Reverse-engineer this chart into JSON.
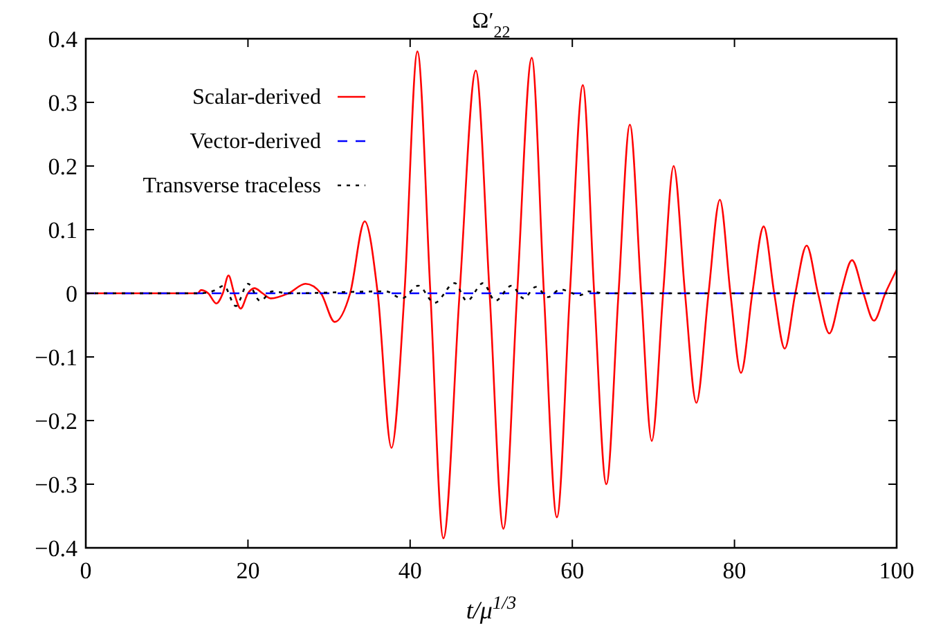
{
  "chart_data": {
    "type": "line",
    "title": "Ω′$_{22}$",
    "xlabel": "t/μ$^{1/3}$",
    "xlim": [
      0,
      100
    ],
    "xticks": [
      0,
      20,
      40,
      60,
      80,
      100
    ],
    "ylim": [
      -0.4,
      0.4
    ],
    "yticks": [
      {
        "value": -0.4,
        "label": "−0.4"
      },
      {
        "value": -0.3,
        "label": "−0.3"
      },
      {
        "value": -0.2,
        "label": "−0.2"
      },
      {
        "value": -0.1,
        "label": "−0.1"
      },
      0,
      0.1,
      0.2,
      0.3,
      0.4
    ],
    "grid": false,
    "legend": "top left",
    "series": [
      {
        "name": "Scalar-derived",
        "color": "#ff0000",
        "line_style": "solid",
        "x": [
          0,
          13.8,
          14.2,
          15.1,
          16.1,
          16.9,
          17.6,
          18.3,
          19.1,
          20.0,
          20.8,
          21.8,
          22.8,
          25.0,
          27.1,
          29.0,
          30.7,
          32.6,
          34.4,
          36.0,
          37.7,
          39.3,
          40.9,
          42.5,
          44.1,
          46.1,
          48.1,
          49.8,
          51.5,
          53.2,
          55.0,
          56.5,
          58.1,
          59.7,
          61.3,
          62.7,
          64.2,
          65.7,
          67.1,
          68.5,
          69.8,
          71.2,
          72.5,
          73.9,
          75.3,
          76.8,
          78.2,
          79.5,
          80.8,
          82.2,
          83.6,
          84.9,
          86.2,
          87.5,
          88.9,
          90.3,
          91.7,
          93.1,
          94.5,
          95.9,
          97.2,
          98.6,
          100
        ],
        "values": [
          0,
          0,
          0.005,
          0,
          -0.016,
          0,
          0.028,
          0,
          -0.024,
          0,
          0.008,
          0,
          -0.008,
          0,
          0.015,
          0,
          -0.045,
          0,
          0.113,
          0,
          -0.243,
          0,
          0.38,
          0,
          -0.385,
          0,
          0.35,
          0,
          -0.37,
          0,
          0.37,
          0,
          -0.352,
          0,
          0.327,
          0,
          -0.3,
          0,
          0.265,
          0,
          -0.232,
          0,
          0.2,
          0,
          -0.172,
          0,
          0.147,
          0,
          -0.125,
          0,
          0.105,
          0,
          -0.087,
          0,
          0.075,
          0,
          -0.063,
          0,
          0.052,
          0,
          -0.043,
          0,
          0.037
        ]
      },
      {
        "name": "Vector-derived",
        "color": "#0000ff",
        "line_style": "dashed",
        "x": [
          0,
          20,
          40,
          60,
          80,
          100
        ],
        "values": [
          0,
          0,
          0,
          0,
          0,
          0
        ]
      },
      {
        "name": "Transverse traceless",
        "color": "#000000",
        "line_style": "dotted",
        "x": [
          0,
          14,
          16,
          17,
          18.5,
          20,
          21.5,
          23,
          25,
          37,
          39,
          41,
          43,
          45.5,
          47,
          49,
          50.5,
          52.5,
          54,
          55.5,
          57,
          58.5,
          61,
          62,
          64,
          100
        ],
        "values": [
          0,
          0,
          0.005,
          0.012,
          -0.02,
          0.015,
          -0.012,
          0.003,
          0,
          0.003,
          -0.008,
          0.012,
          -0.015,
          0.016,
          -0.012,
          0.016,
          -0.012,
          0.012,
          -0.008,
          0.01,
          -0.006,
          0.006,
          -0.003,
          0.003,
          0,
          0
        ]
      }
    ]
  }
}
